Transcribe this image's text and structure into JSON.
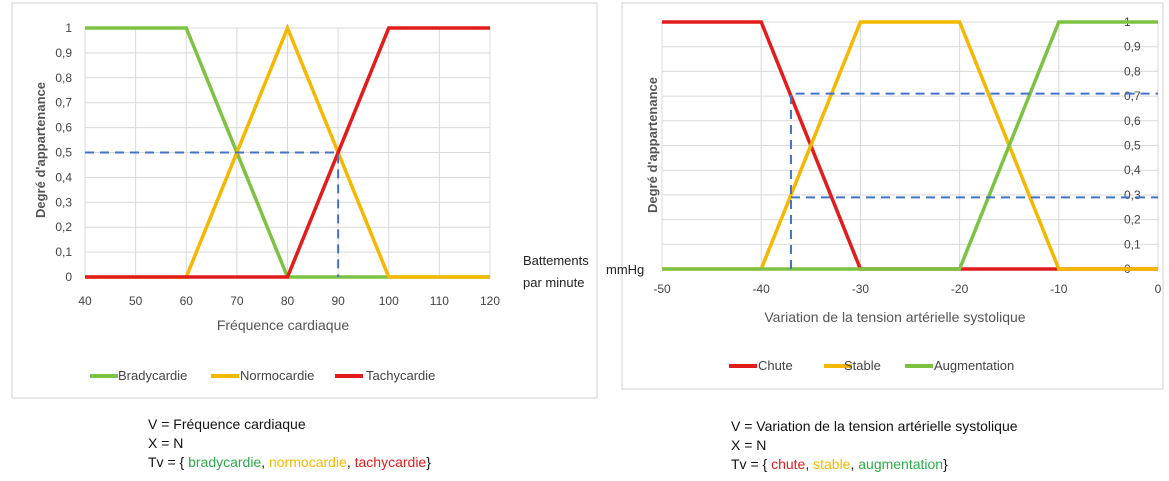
{
  "chart_data": [
    {
      "type": "line",
      "xlabel": "Fréquence cardiaque",
      "ylabel": "Degré d'appartenance",
      "unit_label": [
        "Battements",
        "par minute"
      ],
      "xlim": [
        40,
        120
      ],
      "ylim": [
        0,
        1
      ],
      "x_ticks": [
        40,
        50,
        60,
        70,
        80,
        90,
        100,
        110,
        120
      ],
      "y_ticks": [
        "0",
        "0,1",
        "0,2",
        "0,3",
        "0,4",
        "0,5",
        "0,6",
        "0,7",
        "0,8",
        "0,9",
        "1"
      ],
      "legend_position": "bottom",
      "series": [
        {
          "name": "Bradycardie",
          "color": "#7dc242",
          "points": [
            [
              40,
              1
            ],
            [
              60,
              1
            ],
            [
              80,
              0
            ],
            [
              120,
              0
            ]
          ]
        },
        {
          "name": "Normocardie",
          "color": "#f5b800",
          "points": [
            [
              40,
              0
            ],
            [
              60,
              0
            ],
            [
              80,
              1
            ],
            [
              100,
              0
            ],
            [
              120,
              0
            ]
          ]
        },
        {
          "name": "Tachycardie",
          "color": "#e21b1b",
          "points": [
            [
              40,
              0
            ],
            [
              80,
              0
            ],
            [
              100,
              1
            ],
            [
              120,
              1
            ]
          ]
        }
      ],
      "guides": [
        {
          "points": [
            [
              40,
              0.5
            ],
            [
              90,
              0.5
            ],
            [
              90,
              0
            ]
          ]
        }
      ]
    },
    {
      "type": "line",
      "xlabel": "Variation de la tension artérielle systolique",
      "ylabel": "Degré d'appartenance",
      "unit_label": [
        "mmHg"
      ],
      "xlim": [
        -50,
        0
      ],
      "ylim": [
        0,
        1
      ],
      "x_ticks": [
        -50,
        -40,
        -30,
        -20,
        -10,
        0
      ],
      "y_ticks": [
        "0",
        "0,1",
        "0,2",
        "0,3",
        "0,4",
        "0,5",
        "0,6",
        "0,7",
        "0,8",
        "0,9",
        "1"
      ],
      "legend_position": "bottom",
      "series": [
        {
          "name": "Chute",
          "color": "#e21b1b",
          "points": [
            [
              -50,
              1
            ],
            [
              -40,
              1
            ],
            [
              -30,
              0
            ],
            [
              -20,
              0
            ],
            [
              -10,
              0
            ],
            [
              0,
              0
            ]
          ]
        },
        {
          "name": "Stable",
          "color": "#f5b800",
          "points": [
            [
              -50,
              0
            ],
            [
              -40,
              0
            ],
            [
              -30,
              1
            ],
            [
              -20,
              1
            ],
            [
              -10,
              0
            ],
            [
              0,
              0
            ]
          ]
        },
        {
          "name": "Augmentation",
          "color": "#7dc242",
          "points": [
            [
              -50,
              0
            ],
            [
              -20,
              0
            ],
            [
              -10,
              1
            ],
            [
              0,
              1
            ]
          ]
        }
      ],
      "guides": [
        {
          "points": [
            [
              -37,
              0
            ],
            [
              -37,
              0.71
            ],
            [
              0,
              0.71
            ]
          ]
        },
        {
          "points": [
            [
              -37,
              0.29
            ],
            [
              0,
              0.29
            ]
          ]
        }
      ]
    }
  ],
  "captions": [
    {
      "v_line": "V = Fréquence cardiaque",
      "x_line": "X = N",
      "tv_prefix": "Tv = { ",
      "terms": [
        {
          "text": "bradycardie",
          "sep": ", ",
          "color": "#2eaa4a"
        },
        {
          "text": "normocardie",
          "sep": ", ",
          "color": "#f5b800"
        },
        {
          "text": "tachycardie",
          "sep": "",
          "color": "#e21b1b"
        }
      ],
      "tv_suffix": "}"
    },
    {
      "v_line": "V = Variation de la tension artérielle systolique",
      "x_line": "X = N",
      "tv_prefix": "Tv = { ",
      "terms": [
        {
          "text": "chute",
          "sep": ", ",
          "color": "#e21b1b"
        },
        {
          "text": "stable",
          "sep": ", ",
          "color": "#f5b800"
        },
        {
          "text": "augmentation",
          "sep": "",
          "color": "#2eaa4a"
        }
      ],
      "tv_suffix": "}"
    }
  ]
}
